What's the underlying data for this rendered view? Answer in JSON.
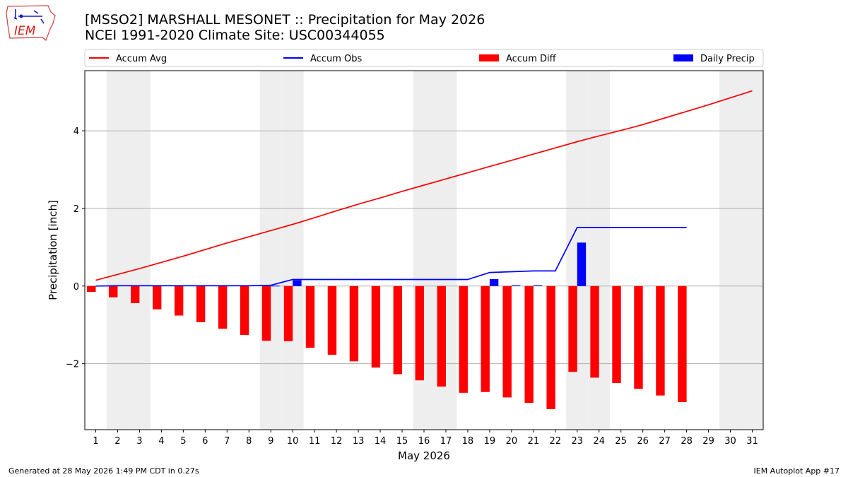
{
  "header": {
    "title_line1": "[MSSO2] MARSHALL MESONET :: Precipitation for May 2026",
    "title_line2": "NCEI 1991-2020 Climate Site: USC00344055",
    "logo_text": "IEM"
  },
  "footer": {
    "generated": "Generated at 28 May 2026 1:49 PM CDT in 0.27s",
    "app": "IEM Autoplot App #17"
  },
  "colors": {
    "accum_avg": "#ff0000",
    "accum_obs": "#0000ff",
    "accum_diff": "#ff0000",
    "daily_precip": "#0000ff",
    "weekend_shade": "#eeeeee",
    "grid": "#b0b0b0"
  },
  "chart_data": {
    "type": "bar",
    "title": "[MSSO2] MARSHALL MESONET :: Precipitation for May 2026",
    "subtitle": "NCEI 1991-2020 Climate Site: USC00344055",
    "xlabel": "May 2026",
    "ylabel": "Precipitation [inch]",
    "xlim": [
      0.5,
      31.5
    ],
    "ylim": [
      -3.7,
      5.55
    ],
    "yticks": [
      -2,
      0,
      2,
      4
    ],
    "ytick_labels": [
      "−2",
      "0",
      "2",
      "4"
    ],
    "x": [
      1,
      2,
      3,
      4,
      5,
      6,
      7,
      8,
      9,
      10,
      11,
      12,
      13,
      14,
      15,
      16,
      17,
      18,
      19,
      20,
      21,
      22,
      23,
      24,
      25,
      26,
      27,
      28,
      29,
      30,
      31
    ],
    "x_tick_labels": [
      "1",
      "2",
      "3",
      "4",
      "5",
      "6",
      "7",
      "8",
      "9",
      "10",
      "11",
      "12",
      "13",
      "14",
      "15",
      "16",
      "17",
      "18",
      "19",
      "20",
      "21",
      "22",
      "23",
      "24",
      "25",
      "26",
      "27",
      "28",
      "29",
      "30",
      "31"
    ],
    "weekend_days": [
      2,
      3,
      9,
      10,
      16,
      17,
      23,
      24,
      30,
      31
    ],
    "grid": "y",
    "legend_position": "top",
    "series": [
      {
        "name": "Accum Avg",
        "kind": "line",
        "x": [
          1,
          2,
          3,
          4,
          5,
          6,
          7,
          8,
          9,
          10,
          11,
          12,
          13,
          14,
          15,
          16,
          17,
          18,
          19,
          20,
          21,
          22,
          23,
          24,
          25,
          26,
          27,
          28,
          29,
          30,
          31
        ],
        "values": [
          0.15,
          0.3,
          0.45,
          0.61,
          0.77,
          0.94,
          1.11,
          1.27,
          1.43,
          1.59,
          1.76,
          1.94,
          2.11,
          2.27,
          2.44,
          2.6,
          2.76,
          2.92,
          3.08,
          3.24,
          3.4,
          3.56,
          3.72,
          3.87,
          4.01,
          4.16,
          4.33,
          4.5,
          4.67,
          4.85,
          5.03
        ]
      },
      {
        "name": "Accum Obs",
        "kind": "line",
        "x": [
          1,
          2,
          3,
          4,
          5,
          6,
          7,
          8,
          9,
          10,
          11,
          12,
          13,
          14,
          15,
          16,
          17,
          18,
          19,
          20,
          21,
          22,
          23,
          24,
          25,
          26,
          27,
          28
        ],
        "values": [
          0.0,
          0.01,
          0.01,
          0.01,
          0.01,
          0.01,
          0.01,
          0.01,
          0.02,
          0.17,
          0.17,
          0.17,
          0.17,
          0.17,
          0.17,
          0.17,
          0.17,
          0.17,
          0.35,
          0.37,
          0.39,
          0.39,
          1.51,
          1.51,
          1.51,
          1.51,
          1.51,
          1.51
        ]
      },
      {
        "name": "Accum Diff",
        "kind": "bar",
        "x": [
          1,
          2,
          3,
          4,
          5,
          6,
          7,
          8,
          9,
          10,
          11,
          12,
          13,
          14,
          15,
          16,
          17,
          18,
          19,
          20,
          21,
          22,
          23,
          24,
          25,
          26,
          27,
          28
        ],
        "values": [
          -0.15,
          -0.29,
          -0.44,
          -0.6,
          -0.76,
          -0.93,
          -1.1,
          -1.26,
          -1.41,
          -1.42,
          -1.59,
          -1.77,
          -1.94,
          -2.1,
          -2.27,
          -2.43,
          -2.59,
          -2.75,
          -2.73,
          -2.87,
          -3.01,
          -3.17,
          -2.21,
          -2.36,
          -2.5,
          -2.65,
          -2.82,
          -2.99
        ]
      },
      {
        "name": "Daily Precip",
        "kind": "bar",
        "x": [
          1,
          2,
          3,
          4,
          5,
          6,
          7,
          8,
          9,
          10,
          11,
          12,
          13,
          14,
          15,
          16,
          17,
          18,
          19,
          20,
          21,
          22,
          23,
          24,
          25,
          26,
          27,
          28
        ],
        "values": [
          0.0,
          0.0,
          0.0,
          0.0,
          0.0,
          0.0,
          0.0,
          0.0,
          0.01,
          0.15,
          0.0,
          0.0,
          0.0,
          0.0,
          0.0,
          0.0,
          0.0,
          0.0,
          0.18,
          0.02,
          0.02,
          0.0,
          1.12,
          0.0,
          0.0,
          0.0,
          0.0,
          0.0
        ]
      }
    ]
  }
}
